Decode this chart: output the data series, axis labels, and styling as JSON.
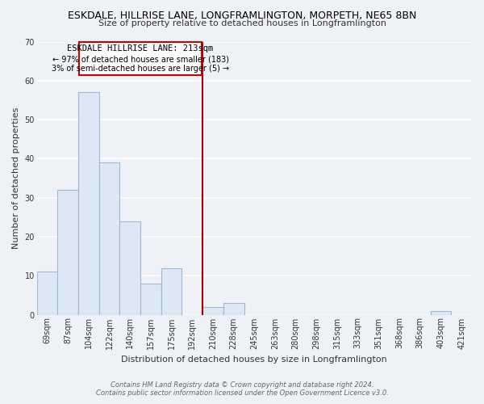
{
  "title": "ESKDALE, HILLRISE LANE, LONGFRAMLINGTON, MORPETH, NE65 8BN",
  "subtitle": "Size of property relative to detached houses in Longframlington",
  "xlabel": "Distribution of detached houses by size in Longframlington",
  "ylabel": "Number of detached properties",
  "bar_color": "#dce8f5",
  "bar_edge_color": "#a0b8d0",
  "categories": [
    "69sqm",
    "87sqm",
    "104sqm",
    "122sqm",
    "140sqm",
    "157sqm",
    "175sqm",
    "192sqm",
    "210sqm",
    "228sqm",
    "245sqm",
    "263sqm",
    "280sqm",
    "298sqm",
    "315sqm",
    "333sqm",
    "351sqm",
    "368sqm",
    "386sqm",
    "403sqm",
    "421sqm"
  ],
  "values": [
    11,
    32,
    57,
    39,
    24,
    8,
    12,
    0,
    2,
    3,
    0,
    0,
    0,
    0,
    0,
    0,
    0,
    0,
    0,
    1,
    0
  ],
  "ylim": [
    0,
    70
  ],
  "yticks": [
    0,
    10,
    20,
    30,
    40,
    50,
    60,
    70
  ],
  "marker_label": "ESKDALE HILLRISE LANE: 213sqm",
  "annotation_line1": "← 97% of detached houses are smaller (183)",
  "annotation_line2": "3% of semi-detached houses are larger (5) →",
  "annotation_box_color": "#ffffff",
  "annotation_box_edge_color": "#cc0000",
  "vline_color": "#aa0000",
  "footer_line1": "Contains HM Land Registry data © Crown copyright and database right 2024.",
  "footer_line2": "Contains public sector information licensed under the Open Government Licence v3.0.",
  "background_color": "#eef2f7",
  "grid_color": "#ffffff",
  "title_fontsize": 9,
  "subtitle_fontsize": 8,
  "axis_fontsize": 8,
  "tick_fontsize": 7,
  "annotation_fontsize": 7.5,
  "footer_fontsize": 6
}
